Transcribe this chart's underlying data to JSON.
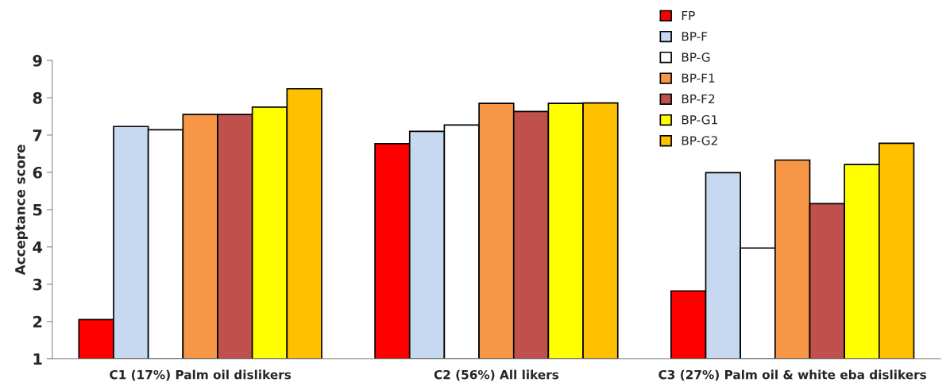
{
  "chart_data": {
    "type": "bar",
    "ylabel": "Acceptance score",
    "categories": [
      "C1 (17%) Palm oil dislikers",
      "C2 (56%) All likers",
      "C3 (27%) Palm oil & white eba dislikers"
    ],
    "series": [
      {
        "name": "FP",
        "color": "#ff0000",
        "values": [
          2.05,
          6.77,
          2.82
        ]
      },
      {
        "name": "BP-F",
        "color": "#c6d9f1",
        "values": [
          7.23,
          7.1,
          5.99
        ]
      },
      {
        "name": "BP-G",
        "color": "#ffffff",
        "values": [
          7.14,
          7.27,
          3.97
        ]
      },
      {
        "name": "BP-F1",
        "color": "#f79646",
        "values": [
          7.55,
          7.85,
          6.33
        ]
      },
      {
        "name": "BP-F2",
        "color": "#c0504d",
        "values": [
          7.55,
          7.63,
          5.16
        ]
      },
      {
        "name": "BP-G1",
        "color": "#ffff00",
        "values": [
          7.75,
          7.85,
          6.21
        ]
      },
      {
        "name": "BP-G2",
        "color": "#ffc000",
        "values": [
          8.24,
          7.86,
          6.78
        ]
      }
    ],
    "ylim": [
      1,
      9
    ],
    "yticks": [
      1,
      2,
      3,
      4,
      5,
      6,
      7,
      8,
      9
    ],
    "grid": false,
    "legend": "top right"
  }
}
